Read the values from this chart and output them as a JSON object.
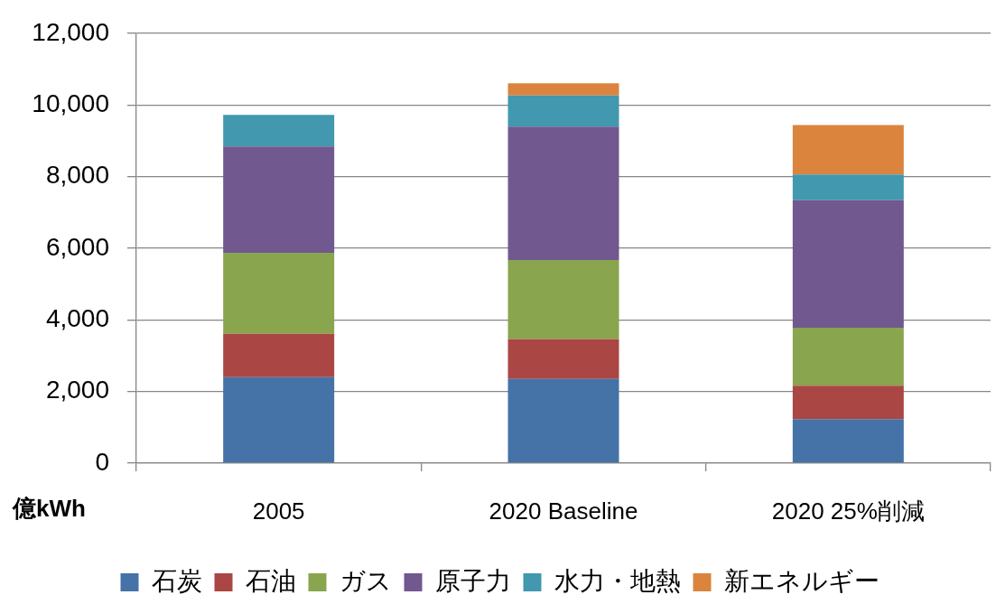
{
  "chart_data": {
    "type": "bar",
    "stacked": true,
    "ylabel": "億kWh",
    "categories": [
      "2005",
      "2020 Baseline",
      "2020 25%削減"
    ],
    "series": [
      {
        "name": "石炭",
        "color": "#4572a7",
        "values": [
          2400,
          2350,
          1230
        ]
      },
      {
        "name": "石油",
        "color": "#aa4643",
        "values": [
          1210,
          1110,
          930
        ]
      },
      {
        "name": "ガス",
        "color": "#89a54e",
        "values": [
          2260,
          2210,
          1620
        ]
      },
      {
        "name": "原子力",
        "color": "#71588f",
        "values": [
          2970,
          3720,
          3560
        ]
      },
      {
        "name": "水力・地熱",
        "color": "#4198af",
        "values": [
          880,
          870,
          720
        ]
      },
      {
        "name": "新エネルギー",
        "color": "#db843d",
        "values": [
          0,
          340,
          1380
        ]
      }
    ],
    "ylim": [
      0,
      12000
    ],
    "yticks": [
      0,
      {
        "value": 2000,
        "label": "2,000"
      },
      {
        "value": 4000,
        "label": "4,000"
      },
      {
        "value": 6000,
        "label": "6,000"
      },
      {
        "value": 8000,
        "label": "8,000"
      },
      {
        "value": 10000,
        "label": "10,000"
      },
      {
        "value": 12000,
        "label": "12,000"
      }
    ],
    "grid": "y",
    "legend": "bottom"
  }
}
